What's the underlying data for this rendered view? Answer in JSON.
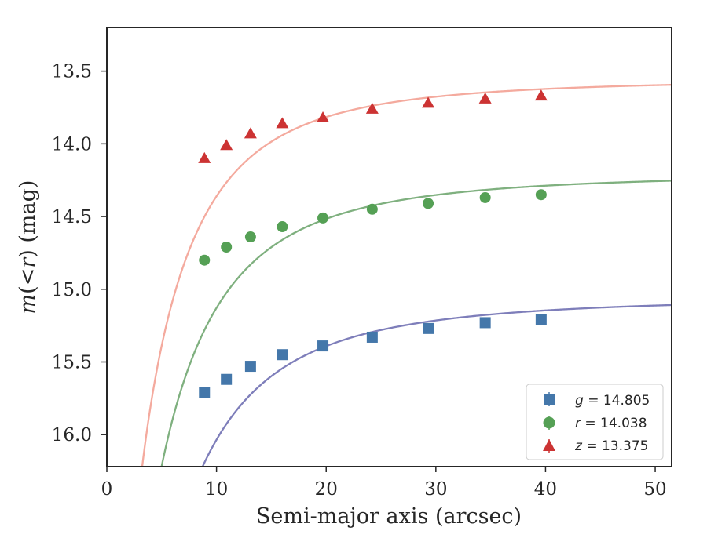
{
  "chart_data": {
    "type": "line",
    "title": "",
    "xlabel": "Semi-major axis (arcsec)",
    "ylabel_prefix": "m",
    "ylabel_middle": "(<",
    "ylabel_var": "r",
    "ylabel_suffix": ") (mag)",
    "xlim": [
      0,
      51.5
    ],
    "ylim": [
      16.22,
      13.2
    ],
    "y_inverted": true,
    "x_ticks": [
      0,
      10,
      20,
      30,
      40,
      50
    ],
    "x_tick_labels": [
      "0",
      "10",
      "20",
      "30",
      "40",
      "50"
    ],
    "y_ticks": [
      13.5,
      14.0,
      14.5,
      15.0,
      15.5,
      16.0
    ],
    "y_tick_labels": [
      "13.5",
      "14.0",
      "14.5",
      "15.0",
      "15.5",
      "16.0"
    ],
    "grid": false,
    "legend_position": "lower-right",
    "series": [
      {
        "name": "g",
        "legend_var": "g",
        "legend_value": " = 14.805",
        "marker": "square",
        "marker_color": "#4477aa",
        "curve_color": "#7e7eba",
        "asymptote": 15.05,
        "x": [
          8.9,
          10.9,
          13.1,
          16.0,
          19.7,
          24.2,
          29.3,
          34.5,
          39.6
        ],
        "y": [
          15.71,
          15.62,
          15.53,
          15.45,
          15.39,
          15.33,
          15.27,
          15.23,
          15.21
        ]
      },
      {
        "name": "r",
        "legend_var": "r",
        "legend_value": " = 14.038",
        "marker": "circle",
        "marker_color": "#55a055",
        "curve_color": "#7fb07f",
        "asymptote": 14.2,
        "x": [
          8.9,
          10.9,
          13.1,
          16.0,
          19.7,
          24.2,
          29.3,
          34.5,
          39.6
        ],
        "y": [
          14.8,
          14.71,
          14.64,
          14.57,
          14.51,
          14.45,
          14.41,
          14.37,
          14.35
        ]
      },
      {
        "name": "z",
        "legend_var": "z",
        "legend_value": " = 13.375",
        "marker": "triangle",
        "marker_color": "#cc3333",
        "curve_color": "#f4aa9e",
        "asymptote": 13.55,
        "x": [
          8.9,
          10.9,
          13.1,
          16.0,
          19.7,
          24.2,
          29.3,
          34.5,
          39.6
        ],
        "y": [
          14.1,
          14.01,
          13.93,
          13.86,
          13.82,
          13.76,
          13.72,
          13.69,
          13.67
        ]
      }
    ]
  }
}
